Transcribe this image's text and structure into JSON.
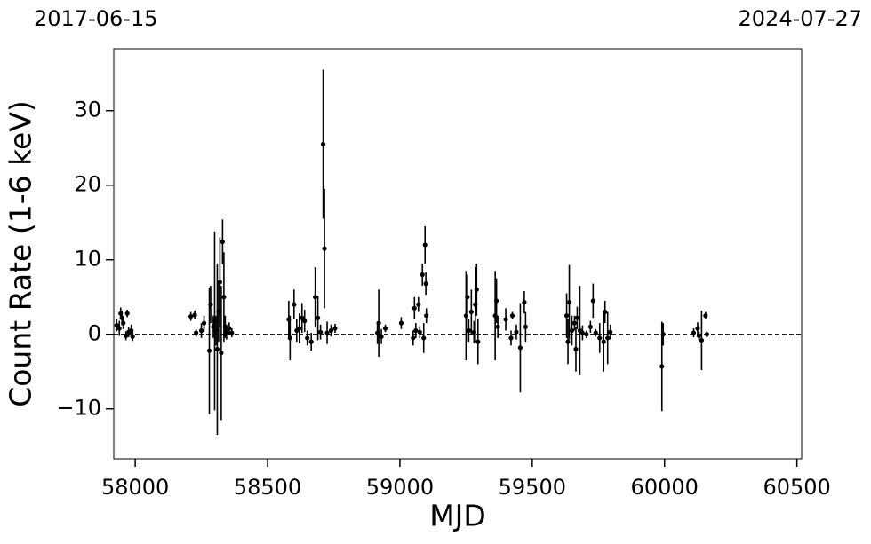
{
  "chart_data": {
    "type": "scatter",
    "xlabel": "MJD",
    "ylabel": "Count Rate (1-6 keV)",
    "xlim": [
      57919,
      60518
    ],
    "ylim": [
      -16.7,
      38.3
    ],
    "xticks": [
      58000,
      58500,
      59000,
      59500,
      60000,
      60500
    ],
    "yticks": [
      {
        "value": -10,
        "label": "−10"
      },
      0,
      10,
      20,
      30
    ],
    "x2ticks": [
      {
        "value": 57919,
        "label": "2017-06-15"
      },
      {
        "value": 60518,
        "label": "2024-07-27"
      }
    ],
    "hline": 0,
    "color": "#000000",
    "x": [
      57930,
      57940,
      57945,
      57950,
      57955,
      57965,
      57970,
      57975,
      57985,
      57990,
      58210,
      58225,
      58230,
      58250,
      58260,
      58280,
      58285,
      58295,
      58300,
      58305,
      58310,
      58315,
      58320,
      58325,
      58330,
      58335,
      58340,
      58345,
      58355,
      58365,
      58580,
      58585,
      58600,
      58610,
      58620,
      58630,
      58640,
      58650,
      58665,
      58680,
      58690,
      58700,
      58710,
      58715,
      58725,
      58740,
      58755,
      58915,
      58920,
      58930,
      58945,
      59005,
      59050,
      59055,
      59060,
      59070,
      59075,
      59085,
      59090,
      59095,
      59098,
      59100,
      59250,
      59255,
      59260,
      59270,
      59280,
      59285,
      59290,
      59295,
      59360,
      59365,
      59370,
      59400,
      59420,
      59425,
      59440,
      59455,
      59470,
      59475,
      59630,
      59635,
      59640,
      59650,
      59660,
      59665,
      59670,
      59680,
      59690,
      59705,
      59720,
      59730,
      59740,
      59755,
      59770,
      59775,
      59785,
      59795,
      59990,
      59995,
      60110,
      60125,
      60130,
      60140,
      60155,
      60160
    ],
    "values": [
      1.2,
      0.8,
      2.8,
      2.2,
      1.5,
      -0.2,
      2.8,
      0.3,
      0.5,
      -0.3,
      2.4,
      2.6,
      0.2,
      0.5,
      1.5,
      -2.2,
      4,
      1,
      1.8,
      0.5,
      -2,
      3,
      7,
      -2.5,
      12.4,
      5,
      1,
      0.3,
      0.8,
      0.2,
      2,
      -0.5,
      4,
      0.5,
      0.8,
      2.2,
      1.8,
      -0.5,
      -1,
      5,
      2.2,
      0.3,
      25.5,
      11.5,
      0.2,
      0.5,
      0.8,
      0.2,
      1.5,
      -0.3,
      0.8,
      1.5,
      -0.5,
      3.5,
      0.5,
      4,
      0.3,
      8,
      -0.5,
      12,
      6.8,
      2.5,
      2.5,
      5,
      0.5,
      3,
      0.3,
      4,
      6,
      -1,
      2.5,
      4.5,
      1,
      2,
      -0.5,
      2.5,
      0.3,
      -1.8,
      4.3,
      1,
      2.5,
      -1,
      4.3,
      0.5,
      1.5,
      -2,
      2.2,
      0.5,
      0.2,
      0,
      1,
      4.5,
      0.2,
      -0.5,
      -1,
      3,
      -0.5,
      0.3,
      -4.3,
      0,
      0.2,
      0.8,
      -0.2,
      -0.8,
      2.5,
      0
    ],
    "errors": [
      0.8,
      1,
      0.8,
      1,
      0.8,
      0.6,
      0.5,
      0.7,
      0.8,
      0.6,
      0.6,
      0.6,
      0.5,
      1,
      1,
      8.5,
      2.5,
      1.5,
      12,
      2,
      11.5,
      4,
      6,
      9,
      3,
      6,
      1.5,
      1,
      0.8,
      0.6,
      2.5,
      3,
      2,
      1.5,
      2,
      2,
      1.5,
      1,
      1.2,
      4,
      3,
      1,
      10,
      8,
      1.5,
      0.8,
      0.6,
      1.5,
      4.5,
      1,
      0.5,
      0.8,
      1,
      1.5,
      1,
      1,
      0.8,
      1.5,
      2,
      2.5,
      1.5,
      1,
      6,
      3,
      1.5,
      3,
      1.5,
      5,
      3.5,
      3,
      6,
      3,
      1.5,
      1.5,
      1,
      0.5,
      1,
      6,
      1.5,
      2,
      3,
      3,
      5,
      2,
      1,
      3,
      1.5,
      6,
      1,
      0.5,
      0.8,
      2.3,
      0.5,
      2,
      4,
      1.5,
      3.5,
      1,
      6,
      1.5,
      0.6,
      0.8,
      0.6,
      4,
      0.5,
      0.4
    ]
  }
}
